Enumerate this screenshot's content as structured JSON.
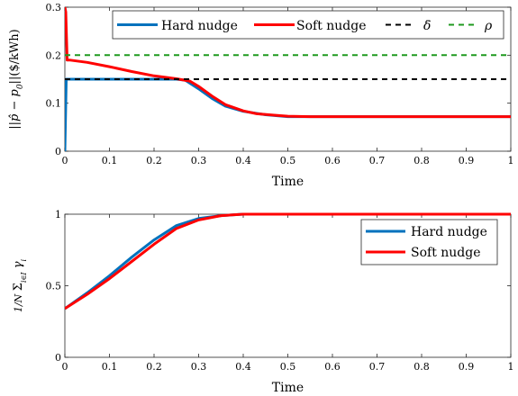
{
  "colors": {
    "hard": "#0072bd",
    "soft": "#ff0000",
    "delta": "#000000",
    "rho": "#1f9a1f"
  },
  "chart_data": [
    {
      "type": "line",
      "xlabel": "Time",
      "ylabel": "||p̂ − p₀||($/kWh)",
      "xlim": [
        0,
        1
      ],
      "ylim": [
        0,
        0.3
      ],
      "xticks": [
        "0",
        "0.1",
        "0.2",
        "0.3",
        "0.4",
        "0.5",
        "0.6",
        "0.7",
        "0.8",
        "0.9",
        "1"
      ],
      "yticks": [
        "0",
        "0.1",
        "0.2",
        "0.3"
      ],
      "grid": false,
      "legend_position": "top",
      "series": [
        {
          "name": "Hard nudge",
          "color_key": "hard",
          "style": "solid",
          "x": [
            0,
            0.003,
            0.01,
            0.05,
            0.1,
            0.15,
            0.2,
            0.25,
            0.27,
            0.3,
            0.33,
            0.36,
            0.4,
            0.45,
            0.5,
            0.6,
            0.7,
            0.8,
            0.9,
            1.0
          ],
          "y": [
            0,
            0.15,
            0.15,
            0.15,
            0.15,
            0.15,
            0.15,
            0.15,
            0.148,
            0.13,
            0.11,
            0.094,
            0.083,
            0.076,
            0.072,
            0.072,
            0.072,
            0.072,
            0.072,
            0.072
          ]
        },
        {
          "name": "Soft nudge",
          "color_key": "soft",
          "style": "solid",
          "x": [
            0,
            0.002,
            0.005,
            0.01,
            0.05,
            0.1,
            0.15,
            0.2,
            0.25,
            0.28,
            0.3,
            0.33,
            0.36,
            0.4,
            0.43,
            0.47,
            0.5,
            0.55,
            0.6,
            0.7,
            0.8,
            0.9,
            1.0
          ],
          "y": [
            0.3,
            0.29,
            0.19,
            0.19,
            0.185,
            0.176,
            0.166,
            0.157,
            0.151,
            0.146,
            0.135,
            0.115,
            0.097,
            0.084,
            0.078,
            0.075,
            0.073,
            0.072,
            0.072,
            0.072,
            0.072,
            0.072,
            0.072
          ]
        },
        {
          "name": "δ̄",
          "color_key": "delta",
          "style": "dashed",
          "x": [
            0,
            1
          ],
          "y": [
            0.15,
            0.15
          ]
        },
        {
          "name": "ρ",
          "color_key": "rho",
          "style": "dashed",
          "x": [
            0,
            1
          ],
          "y": [
            0.2,
            0.2
          ]
        }
      ]
    },
    {
      "type": "line",
      "xlabel": "Time",
      "ylabel": "(1/N) Σ_{i∈I} γ_i",
      "xlim": [
        0,
        1
      ],
      "ylim": [
        0,
        1
      ],
      "xticks": [
        "0",
        "0.1",
        "0.2",
        "0.3",
        "0.4",
        "0.5",
        "0.6",
        "0.7",
        "0.8",
        "0.9",
        "1"
      ],
      "yticks": [
        "0",
        "0.5",
        "1"
      ],
      "grid": false,
      "legend_position": "top-right",
      "series": [
        {
          "name": "Hard nudge",
          "color_key": "hard",
          "style": "solid",
          "x": [
            0,
            0.05,
            0.1,
            0.15,
            0.2,
            0.25,
            0.3,
            0.35,
            0.4,
            0.5,
            0.6,
            0.7,
            0.8,
            0.9,
            1.0
          ],
          "y": [
            0.34,
            0.45,
            0.57,
            0.7,
            0.82,
            0.92,
            0.97,
            0.99,
            1.0,
            1.0,
            1.0,
            1.0,
            1.0,
            1.0,
            1.0
          ]
        },
        {
          "name": "Soft nudge",
          "color_key": "soft",
          "style": "solid",
          "x": [
            0,
            0.05,
            0.1,
            0.15,
            0.2,
            0.25,
            0.3,
            0.35,
            0.4,
            0.5,
            0.6,
            0.7,
            0.8,
            0.9,
            1.0
          ],
          "y": [
            0.34,
            0.44,
            0.55,
            0.67,
            0.79,
            0.9,
            0.96,
            0.99,
            1.0,
            1.0,
            1.0,
            1.0,
            1.0,
            1.0,
            1.0
          ]
        }
      ]
    }
  ]
}
